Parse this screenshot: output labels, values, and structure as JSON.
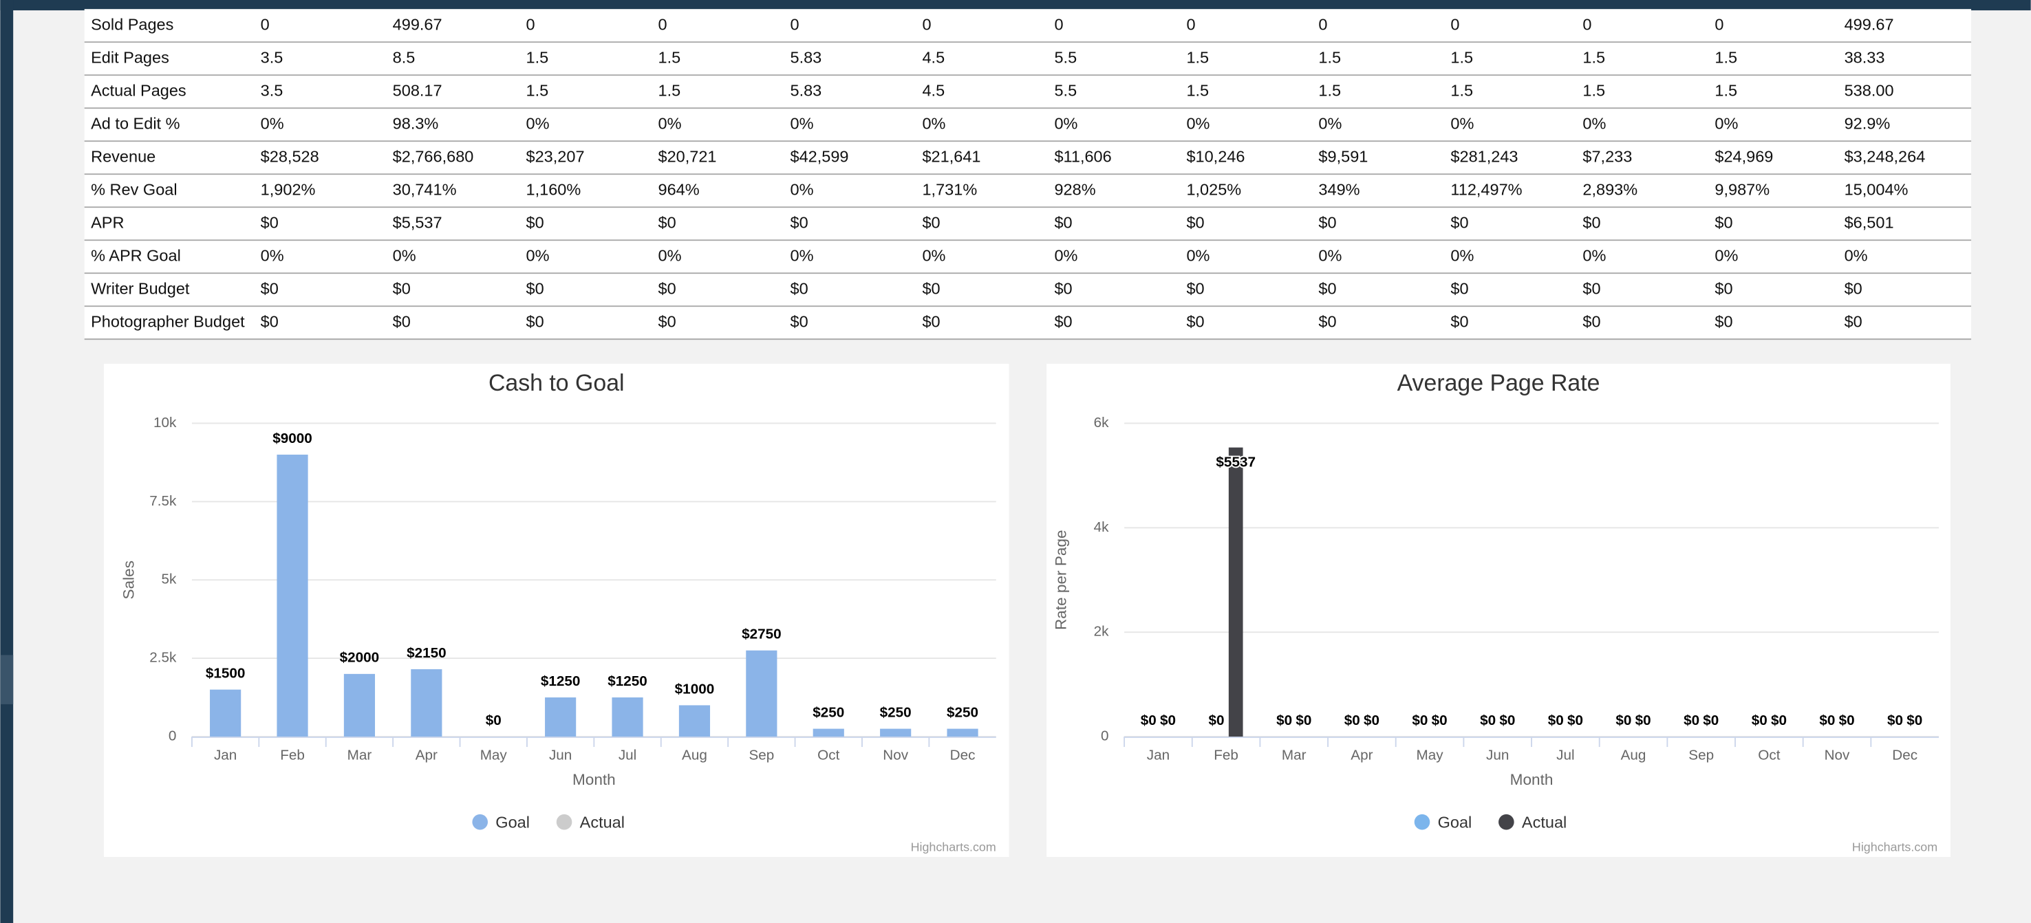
{
  "table": {
    "rows": [
      [
        "Sold Pages",
        "0",
        "499.67",
        "0",
        "0",
        "0",
        "0",
        "0",
        "0",
        "0",
        "0",
        "0",
        "0",
        "499.67"
      ],
      [
        "Edit Pages",
        "3.5",
        "8.5",
        "1.5",
        "1.5",
        "5.83",
        "4.5",
        "5.5",
        "1.5",
        "1.5",
        "1.5",
        "1.5",
        "1.5",
        "38.33"
      ],
      [
        "Actual Pages",
        "3.5",
        "508.17",
        "1.5",
        "1.5",
        "5.83",
        "4.5",
        "5.5",
        "1.5",
        "1.5",
        "1.5",
        "1.5",
        "1.5",
        "538.00"
      ],
      [
        "Ad to Edit %",
        "0%",
        "98.3%",
        "0%",
        "0%",
        "0%",
        "0%",
        "0%",
        "0%",
        "0%",
        "0%",
        "0%",
        "0%",
        "92.9%"
      ],
      [
        "Revenue",
        "$28,528",
        "$2,766,680",
        "$23,207",
        "$20,721",
        "$42,599",
        "$21,641",
        "$11,606",
        "$10,246",
        "$9,591",
        "$281,243",
        "$7,233",
        "$24,969",
        "$3,248,264"
      ],
      [
        "% Rev Goal",
        "1,902%",
        "30,741%",
        "1,160%",
        "964%",
        "0%",
        "1,731%",
        "928%",
        "1,025%",
        "349%",
        "112,497%",
        "2,893%",
        "9,987%",
        "15,004%"
      ],
      [
        "APR",
        "$0",
        "$5,537",
        "$0",
        "$0",
        "$0",
        "$0",
        "$0",
        "$0",
        "$0",
        "$0",
        "$0",
        "$0",
        "$6,501"
      ],
      [
        "% APR Goal",
        "0%",
        "0%",
        "0%",
        "0%",
        "0%",
        "0%",
        "0%",
        "0%",
        "0%",
        "0%",
        "0%",
        "0%",
        "0%"
      ],
      [
        "Writer Budget",
        "$0",
        "$0",
        "$0",
        "$0",
        "$0",
        "$0",
        "$0",
        "$0",
        "$0",
        "$0",
        "$0",
        "$0",
        "$0"
      ],
      [
        "Photographer Budget",
        "$0",
        "$0",
        "$0",
        "$0",
        "$0",
        "$0",
        "$0",
        "$0",
        "$0",
        "$0",
        "$0",
        "$0",
        "$0"
      ]
    ]
  },
  "chart_data": [
    {
      "type": "bar",
      "title": "Cash to Goal",
      "x_label": "Month",
      "y_label": "Sales",
      "credit": "Highcharts.com",
      "categories": [
        "Jan",
        "Feb",
        "Mar",
        "Apr",
        "May",
        "Jun",
        "Jul",
        "Aug",
        "Sep",
        "Oct",
        "Nov",
        "Dec"
      ],
      "series": [
        {
          "name": "Goal",
          "color": "#8bb4e8",
          "visible": true,
          "values": [
            1500,
            9000,
            2000,
            2150,
            0,
            1250,
            1250,
            1000,
            2750,
            250,
            250,
            250
          ],
          "value_labels": [
            "$1500",
            "$9000",
            "$2000",
            "$2150",
            "$0",
            "$1250",
            "$1250",
            "$1000",
            "$2750",
            "$250",
            "$250",
            "$250"
          ]
        },
        {
          "name": "Actual",
          "color": "#cccccc",
          "visible": false,
          "values": [
            null,
            null,
            null,
            null,
            null,
            null,
            null,
            null,
            null,
            null,
            null,
            null
          ]
        }
      ],
      "ylim": [
        0,
        10000
      ],
      "yticks": [
        0,
        {
          "value": 2500,
          "label": "2.5k"
        },
        {
          "value": 5000,
          "label": "5k"
        },
        {
          "value": 7500,
          "label": "7.5k"
        },
        {
          "value": 10000,
          "label": "10k"
        }
      ],
      "grid": true,
      "legend": "bottom"
    },
    {
      "type": "bar",
      "title": "Average Page Rate",
      "x_label": "Month",
      "y_label": "Rate per Page",
      "credit": "Highcharts.com",
      "categories": [
        "Jan",
        "Feb",
        "Mar",
        "Apr",
        "May",
        "Jun",
        "Jul",
        "Aug",
        "Sep",
        "Oct",
        "Nov",
        "Dec"
      ],
      "series": [
        {
          "name": "Goal",
          "color": "#7cb5ec",
          "visible": true,
          "values": [
            0,
            0,
            0,
            0,
            0,
            0,
            0,
            0,
            0,
            0,
            0,
            0
          ],
          "value_labels": [
            "$0",
            "$0",
            "$0",
            "$0",
            "$0",
            "$0",
            "$0",
            "$0",
            "$0",
            "$0",
            "$0",
            "$0"
          ]
        },
        {
          "name": "Actual",
          "color": "#434348",
          "visible": true,
          "values": [
            0,
            5537,
            0,
            0,
            0,
            0,
            0,
            0,
            0,
            0,
            0,
            0
          ],
          "value_labels": [
            "$0",
            "$5537",
            "$0",
            "$0",
            "$0",
            "$0",
            "$0",
            "$0",
            "$0",
            "$0",
            "$0",
            "$0"
          ]
        }
      ],
      "ylim": [
        0,
        6000
      ],
      "yticks": [
        0,
        {
          "value": 2000,
          "label": "2k"
        },
        {
          "value": 4000,
          "label": "4k"
        },
        {
          "value": 6000,
          "label": "6k"
        }
      ],
      "grid": true,
      "legend": "bottom"
    }
  ]
}
